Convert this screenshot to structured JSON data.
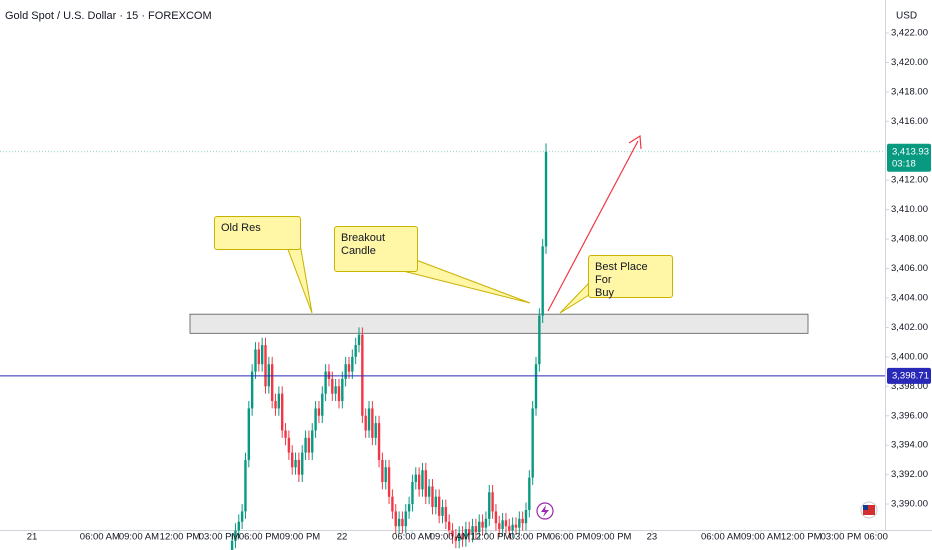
{
  "header": {
    "symbol": "Gold Spot / U.S. Dollar · 15 · FOREXCOM",
    "currency": "USD"
  },
  "chart_data": {
    "type": "candlestick",
    "x": [
      0,
      1,
      2,
      3,
      4,
      5,
      6,
      7,
      8,
      9,
      10,
      11,
      12,
      13,
      14,
      15,
      16,
      17,
      18,
      19,
      20,
      21,
      22,
      23,
      24,
      25,
      26,
      27,
      28,
      29,
      30,
      31,
      32,
      33,
      34,
      35,
      36,
      37,
      38,
      39,
      40,
      41,
      42,
      43,
      44,
      45,
      46,
      47,
      48,
      49,
      50,
      51,
      52,
      53,
      54,
      55,
      56,
      57,
      58,
      59,
      60,
      61,
      62,
      63,
      64,
      65,
      66,
      67,
      68,
      69,
      70,
      71,
      72,
      73,
      74,
      75,
      76,
      77,
      78,
      79,
      80,
      81,
      82,
      83,
      84,
      85,
      86,
      87,
      88,
      89,
      90,
      91,
      92,
      93,
      94
    ],
    "open": [
      3386.8,
      3387.5,
      3388.2,
      3388.8,
      3389.5,
      3393,
      3396.5,
      3399,
      3400.5,
      3399.5,
      3400.8,
      3398,
      3399.5,
      3397,
      3396.5,
      3397.5,
      3395,
      3394.5,
      3393.5,
      3392.5,
      3393,
      3392,
      3393.5,
      3394.5,
      3393.5,
      3395,
      3396.5,
      3396,
      3397.5,
      3399,
      3398.5,
      3397.5,
      3398,
      3397,
      3398.5,
      3399.5,
      3399,
      3400,
      3400.8,
      3401.5,
      3396,
      3395,
      3396.5,
      3394.5,
      3395.5,
      3393,
      3391.5,
      3392.5,
      3390.5,
      3389.5,
      3388.5,
      3389,
      3388.5,
      3389.5,
      3390,
      3391.5,
      3392,
      3391,
      3392.3,
      3390.5,
      3391.2,
      3389.8,
      3390.5,
      3389.2,
      3389.8,
      3388.8,
      3388.2,
      3387.8,
      3387.5,
      3388,
      3387.6,
      3388.3,
      3387.9,
      3388.5,
      3388.1,
      3388.8,
      3388.4,
      3389,
      3390.8,
      3389.5,
      3388.7,
      3388.3,
      3388.9,
      3388.5,
      3388.2,
      3388.6,
      3388.4,
      3389,
      3388.7,
      3389.6,
      3391.8,
      3396.5,
      3399.5,
      3402.8,
      3407.5
    ],
    "high": [
      3388,
      3388.7,
      3389.3,
      3390,
      3393.5,
      3397,
      3399.5,
      3401,
      3401,
      3401.3,
      3401.3,
      3400,
      3400,
      3397.5,
      3398,
      3398,
      3395.5,
      3395,
      3394,
      3393.5,
      3393.5,
      3394,
      3395,
      3395,
      3395.5,
      3397,
      3397,
      3398,
      3399.5,
      3399.5,
      3399,
      3398.5,
      3398.5,
      3399,
      3400,
      3400,
      3400.5,
      3401.3,
      3402,
      3402,
      3396.5,
      3397,
      3397,
      3396,
      3396,
      3393.5,
      3393,
      3393,
      3391,
      3390,
      3389.5,
      3389.5,
      3390,
      3390.5,
      3392,
      3392.5,
      3392.5,
      3392.8,
      3392.8,
      3391.7,
      3391.7,
      3391,
      3391,
      3390.3,
      3390.3,
      3389.3,
      3388.7,
      3388.3,
      3388.5,
      3388.5,
      3388.8,
      3388.8,
      3389,
      3389,
      3389.3,
      3389.3,
      3389.5,
      3391.3,
      3391.3,
      3390,
      3389.2,
      3389.4,
      3389.4,
      3389,
      3389.1,
      3389.1,
      3389.5,
      3389.5,
      3390.1,
      3392.3,
      3397,
      3400,
      3403.3,
      3408,
      3414.5
    ],
    "low": [
      3386.3,
      3387,
      3387.7,
      3388.3,
      3389,
      3392.5,
      3396,
      3398.5,
      3399,
      3399,
      3397.5,
      3397.5,
      3396.5,
      3396,
      3396,
      3394.5,
      3394,
      3393,
      3392,
      3392,
      3391.5,
      3391.5,
      3393,
      3393,
      3393,
      3394.5,
      3395.5,
      3395.5,
      3397,
      3398,
      3397,
      3397,
      3396.5,
      3396.5,
      3398,
      3398.5,
      3398.5,
      3399.5,
      3400.3,
      3395.5,
      3394.5,
      3394.5,
      3394,
      3394,
      3392.5,
      3391,
      3391,
      3390,
      3389,
      3388,
      3388,
      3388,
      3388,
      3389,
      3389.5,
      3391,
      3390.5,
      3390.5,
      3390,
      3390,
      3389.3,
      3389.3,
      3388.7,
      3388.7,
      3388.3,
      3387.7,
      3387.3,
      3387,
      3387,
      3387.1,
      3387.1,
      3387.4,
      3387.4,
      3387.6,
      3387.6,
      3387.9,
      3387.9,
      3388.5,
      3389,
      3388.2,
      3387.8,
      3387.8,
      3388,
      3387.7,
      3387.7,
      3387.9,
      3387.9,
      3388.2,
      3388.2,
      3389.1,
      3391.3,
      3396,
      3399,
      3402.3,
      3407
    ],
    "close": [
      3387.5,
      3388.2,
      3388.8,
      3389.5,
      3393,
      3396.5,
      3399,
      3400.5,
      3399.5,
      3400.8,
      3398,
      3399.5,
      3397,
      3396.5,
      3397.5,
      3395,
      3394.5,
      3393.5,
      3392.5,
      3393,
      3392,
      3393.5,
      3394.5,
      3393.5,
      3395,
      3396.5,
      3396,
      3397.5,
      3399,
      3398.5,
      3397.5,
      3398,
      3397,
      3398.5,
      3399.5,
      3399,
      3400,
      3400.8,
      3401.5,
      3396,
      3395,
      3396.5,
      3394.5,
      3395.5,
      3393,
      3391.5,
      3392.5,
      3390.5,
      3389.5,
      3388.5,
      3389,
      3388.5,
      3389.5,
      3390,
      3391.5,
      3392,
      3391,
      3392.3,
      3390.5,
      3391.2,
      3389.8,
      3390.5,
      3389.2,
      3389.8,
      3388.8,
      3388.2,
      3387.8,
      3387.5,
      3388,
      3387.6,
      3388.3,
      3387.9,
      3388.5,
      3388.1,
      3388.8,
      3388.4,
      3389,
      3390.8,
      3389.5,
      3388.7,
      3388.3,
      3388.9,
      3388.5,
      3388.2,
      3388.6,
      3388.4,
      3389,
      3388.7,
      3389.6,
      3391.8,
      3396.5,
      3399.5,
      3402.8,
      3407.5,
      3413.93
    ],
    "up_color": "#089981",
    "down_color": "#f23645",
    "xlim": [
      -69.5,
      195.5
    ],
    "ylim": [
      3388.24,
      3424.24
    ],
    "xticks": [
      {
        "value": -59.9,
        "label": "21"
      },
      {
        "value": -39.6,
        "label": "06:00 AM"
      },
      {
        "value": -27.9,
        "label": "09:00 AM"
      },
      {
        "value": -15.6,
        "label": "12:00 PM"
      },
      {
        "value": -3.9,
        "label": "03:00 PM"
      },
      {
        "value": 8.1,
        "label": "06:00 PM"
      },
      {
        "value": 20.3,
        "label": "09:00 PM"
      },
      {
        "value": 32.9,
        "label": "22"
      },
      {
        "value": 53.9,
        "label": "06:00 AM"
      },
      {
        "value": 65.2,
        "label": "09:00 AM"
      },
      {
        "value": 77.5,
        "label": "12:00 PM"
      },
      {
        "value": 89.2,
        "label": "03:00 PM"
      },
      {
        "value": 101.2,
        "label": "06:00 PM"
      },
      {
        "value": 113.5,
        "label": "09:00 PM"
      },
      {
        "value": 125.7,
        "label": "23"
      },
      {
        "value": 146.4,
        "label": "06:00 AM"
      },
      {
        "value": 158.4,
        "label": "09:00 AM"
      },
      {
        "value": 170.4,
        "label": "12:00 PM"
      },
      {
        "value": 182.3,
        "label": "03:00 PM"
      },
      {
        "value": 192.8,
        "label": "06:00"
      }
    ],
    "yticks": [
      {
        "value": 3390,
        "label": "3,390.00"
      },
      {
        "value": 3392,
        "label": "3,392.00"
      },
      {
        "value": 3394,
        "label": "3,394.00"
      },
      {
        "value": 3396,
        "label": "3,396.00"
      },
      {
        "value": 3398,
        "label": "3,398.00"
      },
      {
        "value": 3400,
        "label": "3,400.00"
      },
      {
        "value": 3402,
        "label": "3,402.00"
      },
      {
        "value": 3404,
        "label": "3,404.00"
      },
      {
        "value": 3406,
        "label": "3,406.00"
      },
      {
        "value": 3408,
        "label": "3,408.00"
      },
      {
        "value": 3410,
        "label": "3,410.00"
      },
      {
        "value": 3412,
        "label": "3,412.00"
      },
      {
        "value": 3414,
        "label": "3,414.00"
      },
      {
        "value": 3416,
        "label": "3,416.00"
      },
      {
        "value": 3418,
        "label": "3,418.00"
      },
      {
        "value": 3420,
        "label": "3,420.00"
      },
      {
        "value": 3422,
        "label": "3,422.00"
      }
    ],
    "price_lines": [
      {
        "value": 3413.93,
        "label": "3,413.93",
        "countdown": "03:18",
        "color": "#089981",
        "style": "dotted"
      },
      {
        "value": 3398.71,
        "label": "3,398.71",
        "color": "#2929b8",
        "style": "solid"
      }
    ],
    "zone": {
      "low": 3401.6,
      "high": 3402.9,
      "color": "#e0e0e0"
    },
    "annotations": [
      "Old Res",
      "Breakout\nCandle",
      "Best Place For\nBuy"
    ]
  }
}
